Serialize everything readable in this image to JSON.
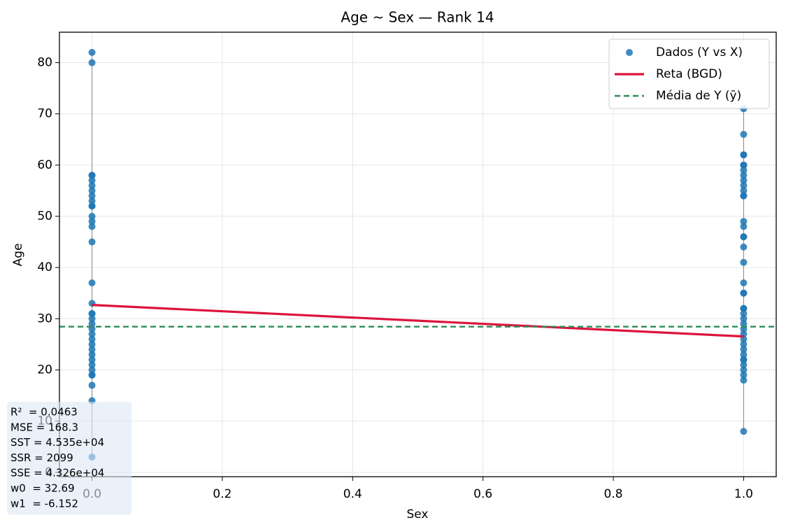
{
  "chart_data": {
    "type": "scatter",
    "title": "Age ~ Sex — Rank 14",
    "x_label": "Sex",
    "y_label": "Age",
    "xlim": [
      -0.05,
      1.05
    ],
    "xticks": [
      {
        "value": 0,
        "label": "0.0"
      },
      0.2,
      0.4,
      0.6,
      0.8,
      {
        "value": 1,
        "label": "1.0"
      }
    ],
    "ylim": [
      -0.85,
      85.95
    ],
    "yticks": [
      0,
      10,
      20,
      30,
      40,
      50,
      60,
      70,
      80
    ],
    "grid": true,
    "legend": "upper right",
    "series": [
      {
        "name": "Dados (Y vs X)",
        "type": "scatter",
        "color": "#1f77b4",
        "x": [
          0,
          0,
          0,
          0,
          0,
          0,
          0,
          0,
          0,
          0,
          0,
          0,
          0,
          0,
          0,
          0,
          0,
          0,
          0,
          0,
          0,
          0,
          0,
          0,
          0,
          0,
          0,
          0,
          0,
          0,
          0,
          0,
          0,
          0,
          0,
          1,
          1,
          1,
          1,
          1,
          1,
          1,
          1,
          1,
          1,
          1,
          1,
          1,
          1,
          1,
          1,
          1,
          1,
          1,
          1,
          1,
          1,
          1,
          1,
          1,
          1,
          1,
          1,
          1,
          1,
          1,
          1,
          1,
          1,
          1,
          1,
          1,
          1,
          1,
          1
        ],
        "values": [
          82,
          80,
          58,
          58,
          57,
          56,
          55,
          54,
          53,
          52,
          52,
          50,
          49,
          48,
          45,
          37,
          33,
          31,
          31,
          30,
          29,
          28,
          27,
          26,
          25,
          24,
          23,
          22,
          21,
          20,
          19,
          19,
          17,
          14,
          3,
          71,
          66,
          62,
          62,
          60,
          60,
          59,
          58,
          57,
          56,
          55,
          54,
          54,
          49,
          48,
          46,
          46,
          44,
          41,
          37,
          35,
          35,
          32,
          32,
          31,
          30,
          29,
          28,
          27,
          26,
          25,
          24,
          23,
          22,
          22,
          21,
          20,
          19,
          18,
          8
        ]
      },
      {
        "name": "Reta (BGD)",
        "type": "line",
        "color": "#dc143c",
        "x": [
          0,
          1
        ],
        "values": [
          32.69,
          26.538
        ]
      },
      {
        "name": "Média de Y (ȳ)",
        "type": "hline",
        "color": "#2e8b57",
        "values": [
          28.45
        ]
      }
    ],
    "annotations": [
      "R²  = 0.0463",
      "MSE = 168.3",
      "SST = 4.535e+04",
      "SSR = 2099",
      "SSE = 4.326e+04",
      "w0  = 32.69",
      "w1  = -6.152"
    ]
  }
}
